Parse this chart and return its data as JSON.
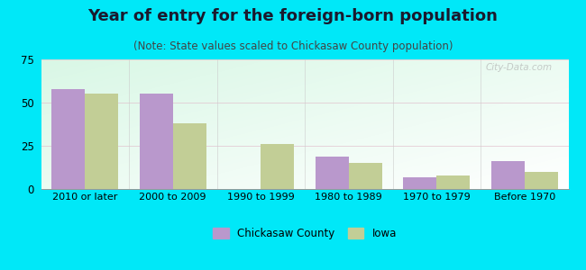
{
  "title": "Year of entry for the foreign-born population",
  "subtitle": "(Note: State values scaled to Chickasaw County population)",
  "categories": [
    "2010 or later",
    "2000 to 2009",
    "1990 to 1999",
    "1980 to 1989",
    "1970 to 1979",
    "Before 1970"
  ],
  "chickasaw": [
    58,
    55,
    0,
    19,
    7,
    16
  ],
  "iowa": [
    55,
    38,
    26,
    15,
    8,
    10
  ],
  "chickasaw_color": "#b998cc",
  "iowa_color": "#c2ce96",
  "background_outer": "#00e8f8",
  "ylim": [
    0,
    75
  ],
  "yticks": [
    0,
    25,
    50,
    75
  ],
  "legend_labels": [
    "Chickasaw County",
    "Iowa"
  ],
  "bar_width": 0.38,
  "title_fontsize": 13,
  "subtitle_fontsize": 8.5,
  "title_color": "#1a1a2e",
  "subtitle_color": "#444444"
}
